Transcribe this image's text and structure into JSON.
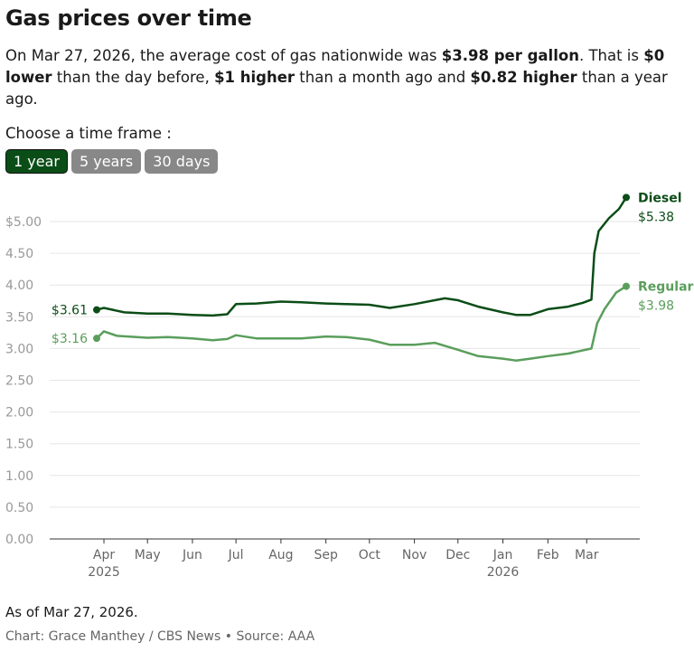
{
  "title": "Gas prices over time",
  "description": {
    "p1": "On Mar 27, 2026, the average cost of gas nationwide was ",
    "b1": "$3.98 per gallon",
    "p2": ". That is ",
    "b2": "$0 lower",
    "p3": " than the day before, ",
    "b3": "$1 higher",
    "p4": " than a month ago and ",
    "b4": "$0.82 higher",
    "p5": " than a year ago."
  },
  "controls": {
    "label": "Choose a time frame :",
    "options": [
      "1 year",
      "5 years",
      "30 days"
    ],
    "selected": "1 year"
  },
  "footer": {
    "as_of": "As of Mar 27, 2026.",
    "credit": "Chart: Grace Manthey / CBS News • Source: AAA"
  },
  "colors": {
    "diesel": "#0b4d17",
    "regular": "#5a9e5c",
    "active_button": "#0b4d17",
    "inactive_button": "#888888"
  },
  "chart_data": {
    "type": "line",
    "ylim": [
      0,
      5.4
    ],
    "yticks": [
      "0.00",
      "0.50",
      "1.00",
      "1.50",
      "2.00",
      "2.50",
      "3.00",
      "3.50",
      "4.00",
      "4.50",
      "$5.00"
    ],
    "ytick_values": [
      0,
      0.5,
      1,
      1.5,
      2,
      2.5,
      3,
      3.5,
      4,
      4.5,
      5
    ],
    "xticks": [
      {
        "label": "Apr",
        "sub": "2025",
        "date": "2025-04-01"
      },
      {
        "label": "May",
        "date": "2025-05-01"
      },
      {
        "label": "Jun",
        "date": "2025-06-01"
      },
      {
        "label": "Jul",
        "date": "2025-07-01"
      },
      {
        "label": "Aug",
        "date": "2025-08-01"
      },
      {
        "label": "Sep",
        "date": "2025-09-01"
      },
      {
        "label": "Oct",
        "date": "2025-10-01"
      },
      {
        "label": "Nov",
        "date": "2025-11-01"
      },
      {
        "label": "Dec",
        "date": "2025-12-01"
      },
      {
        "label": "Jan",
        "sub": "2026",
        "date": "2026-01-01"
      },
      {
        "label": "Feb",
        "date": "2026-02-01"
      },
      {
        "label": "Mar",
        "date": "2026-03-01"
      }
    ],
    "grid": true,
    "series": [
      {
        "name": "Diesel",
        "start_label": "$3.61",
        "end_label": "$5.38",
        "points": [
          [
            "2025-03-27",
            3.61
          ],
          [
            "2025-04-01",
            3.64
          ],
          [
            "2025-04-15",
            3.57
          ],
          [
            "2025-05-01",
            3.55
          ],
          [
            "2025-05-15",
            3.55
          ],
          [
            "2025-06-01",
            3.53
          ],
          [
            "2025-06-15",
            3.52
          ],
          [
            "2025-06-25",
            3.54
          ],
          [
            "2025-07-01",
            3.7
          ],
          [
            "2025-07-15",
            3.71
          ],
          [
            "2025-08-01",
            3.74
          ],
          [
            "2025-08-15",
            3.73
          ],
          [
            "2025-09-01",
            3.71
          ],
          [
            "2025-09-15",
            3.7
          ],
          [
            "2025-10-01",
            3.69
          ],
          [
            "2025-10-15",
            3.64
          ],
          [
            "2025-11-01",
            3.7
          ],
          [
            "2025-11-15",
            3.76
          ],
          [
            "2025-11-22",
            3.79
          ],
          [
            "2025-12-01",
            3.76
          ],
          [
            "2025-12-15",
            3.66
          ],
          [
            "2026-01-01",
            3.57
          ],
          [
            "2026-01-10",
            3.53
          ],
          [
            "2026-01-20",
            3.53
          ],
          [
            "2026-02-01",
            3.62
          ],
          [
            "2026-02-15",
            3.66
          ],
          [
            "2026-02-25",
            3.72
          ],
          [
            "2026-03-03",
            3.77
          ],
          [
            "2026-03-05",
            4.5
          ],
          [
            "2026-03-08",
            4.85
          ],
          [
            "2026-03-15",
            5.05
          ],
          [
            "2026-03-22",
            5.2
          ],
          [
            "2026-03-27",
            5.38
          ]
        ]
      },
      {
        "name": "Regular",
        "start_label": "$3.16",
        "end_label": "$3.98",
        "points": [
          [
            "2025-03-27",
            3.16
          ],
          [
            "2025-04-01",
            3.27
          ],
          [
            "2025-04-10",
            3.2
          ],
          [
            "2025-05-01",
            3.17
          ],
          [
            "2025-05-15",
            3.18
          ],
          [
            "2025-06-01",
            3.16
          ],
          [
            "2025-06-15",
            3.13
          ],
          [
            "2025-06-25",
            3.15
          ],
          [
            "2025-07-01",
            3.21
          ],
          [
            "2025-07-15",
            3.16
          ],
          [
            "2025-08-01",
            3.16
          ],
          [
            "2025-08-15",
            3.16
          ],
          [
            "2025-09-01",
            3.19
          ],
          [
            "2025-09-15",
            3.18
          ],
          [
            "2025-10-01",
            3.14
          ],
          [
            "2025-10-15",
            3.06
          ],
          [
            "2025-11-01",
            3.06
          ],
          [
            "2025-11-15",
            3.09
          ],
          [
            "2025-12-01",
            2.98
          ],
          [
            "2025-12-15",
            2.88
          ],
          [
            "2026-01-01",
            2.84
          ],
          [
            "2026-01-10",
            2.81
          ],
          [
            "2026-01-20",
            2.84
          ],
          [
            "2026-02-01",
            2.88
          ],
          [
            "2026-02-15",
            2.92
          ],
          [
            "2026-03-03",
            3.0
          ],
          [
            "2026-03-07",
            3.4
          ],
          [
            "2026-03-12",
            3.62
          ],
          [
            "2026-03-20",
            3.88
          ],
          [
            "2026-03-27",
            3.98
          ]
        ]
      }
    ]
  }
}
